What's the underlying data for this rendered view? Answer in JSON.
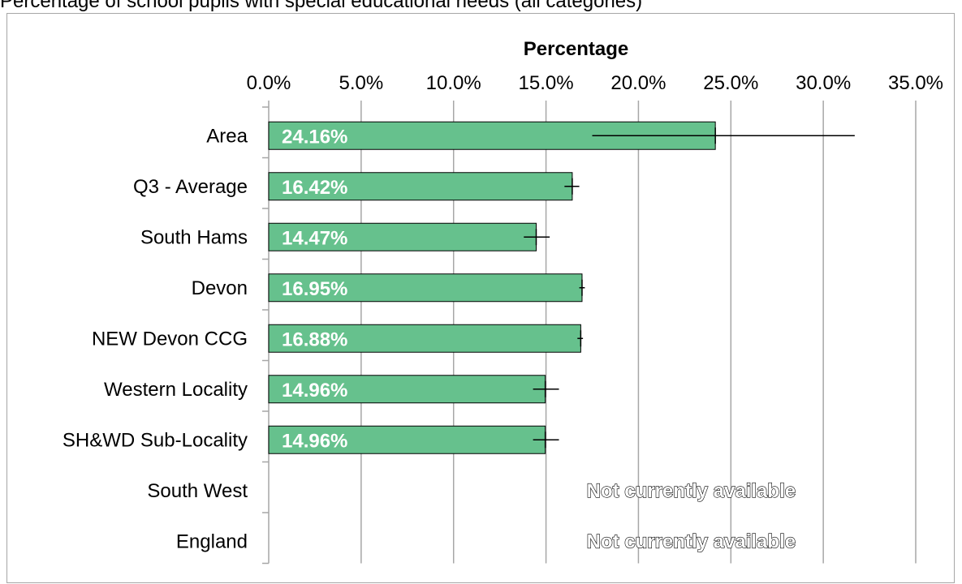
{
  "chart_data": {
    "type": "bar",
    "orientation": "horizontal",
    "title": "Percentage of school pupils with special educational needs (all categories)",
    "xlabel": "Percentage",
    "xlim": [
      0,
      35
    ],
    "x_ticks": [
      "0.0%",
      "5.0%",
      "10.0%",
      "15.0%",
      "20.0%",
      "25.0%",
      "30.0%",
      "35.0%"
    ],
    "grid": true,
    "categories": [
      "Area",
      "Q3 - Average",
      "South Hams",
      "Devon",
      "NEW Devon CCG",
      "Western Locality",
      "SH&WD Sub-Locality",
      "South West",
      "England"
    ],
    "values": [
      24.16,
      16.42,
      14.47,
      16.95,
      16.88,
      14.96,
      14.96,
      null,
      null
    ],
    "data_labels": [
      "24.16%",
      "16.42%",
      "14.47%",
      "16.95%",
      "16.88%",
      "14.96%",
      "14.96%",
      "Not currently available",
      "Not currently available"
    ],
    "error_low": [
      17.5,
      16.0,
      13.8,
      16.8,
      16.7,
      14.3,
      14.3,
      null,
      null
    ],
    "error_high": [
      31.7,
      16.8,
      15.2,
      17.1,
      17.0,
      15.7,
      15.7,
      null,
      null
    ],
    "bar_color": "#66c18d",
    "bar_outline": "#000000"
  }
}
